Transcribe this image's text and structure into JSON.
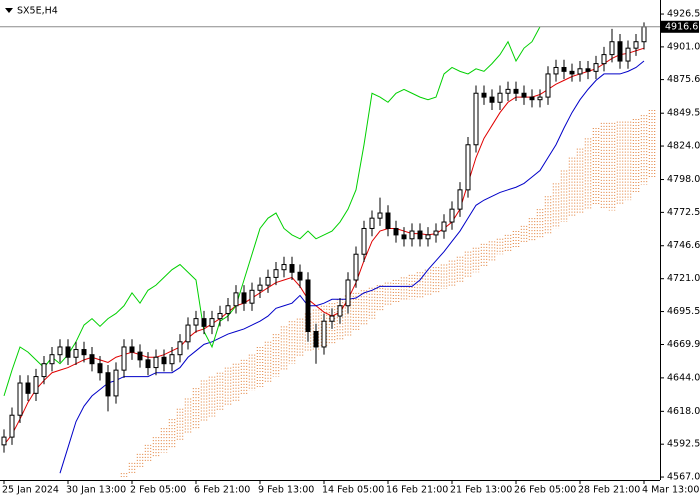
{
  "chart_data": {
    "type": "candlestick",
    "title": "SX5E,H4",
    "ylim": [
      4564.7,
      4937.4
    ],
    "yticks": [
      {
        "value": 4567,
        "label": "4567.0"
      },
      4592.5,
      {
        "value": 4618,
        "label": "4618.0"
      },
      {
        "value": 4644,
        "label": "4644.0"
      },
      4669.9,
      4695.5,
      {
        "value": 4721,
        "label": "4721.0"
      },
      4746.6,
      4772.5,
      {
        "value": 4798,
        "label": "4798.0"
      },
      {
        "value": 4824,
        "label": "4824.0"
      },
      4849.5,
      4875.6,
      {
        "value": 4901,
        "label": "4901.0"
      },
      4926.5
    ],
    "last_price": 4916.6,
    "candle_color": "#000000",
    "categories": [
      "25 Jan 2024",
      null,
      null,
      null,
      null,
      null,
      null,
      null,
      "30 Jan 13:00",
      null,
      null,
      null,
      null,
      null,
      null,
      null,
      "2 Feb 05:00",
      null,
      null,
      null,
      null,
      null,
      null,
      null,
      "6 Feb 21:00",
      null,
      null,
      null,
      null,
      null,
      null,
      null,
      "9 Feb 13:00",
      null,
      null,
      null,
      null,
      null,
      null,
      null,
      "14 Feb 05:00",
      null,
      null,
      null,
      null,
      null,
      null,
      null,
      "16 Feb 21:00",
      null,
      null,
      null,
      null,
      null,
      null,
      null,
      "21 Feb 13:00",
      null,
      null,
      null,
      null,
      null,
      null,
      null,
      "26 Feb 05:00",
      null,
      null,
      null,
      null,
      null,
      null,
      null,
      "28 Feb 21:00",
      null,
      null,
      null,
      null,
      null,
      null,
      null,
      "4 Mar 13:00",
      null
    ],
    "open": [
      4592,
      4598,
      4615,
      4640,
      4632,
      4645,
      4655,
      4662,
      4668,
      4660,
      4666,
      4662,
      4655,
      4648,
      4630,
      4650,
      4668,
      4664,
      4658,
      4652,
      4660,
      4655,
      4662,
      4672,
      4685,
      4690,
      4684,
      4690,
      4694,
      4700,
      4710,
      4702,
      4712,
      4716,
      4722,
      4728,
      4732,
      4726,
      4720,
      4680,
      4668,
      4688,
      4692,
      4700,
      4720,
      4740,
      4760,
      4768,
      4772,
      4760,
      4755,
      4752,
      4758,
      4752,
      4755,
      4758,
      4765,
      4775,
      4790,
      4825,
      4865,
      4862,
      4858,
      4865,
      4868,
      4865,
      4862,
      4860,
      4862,
      4880,
      4885,
      4882,
      4880,
      4884,
      4882,
      4888,
      4895,
      4905,
      4890,
      4900,
      4905,
      null
    ],
    "high": [
      4604,
      4621,
      4646,
      4646,
      4651,
      4661,
      4668,
      4674,
      4674,
      4672,
      4672,
      4668,
      4661,
      4654,
      4656,
      4674,
      4674,
      4670,
      4664,
      4666,
      4666,
      4668,
      4678,
      4691,
      4696,
      4696,
      4696,
      4700,
      4706,
      4716,
      4716,
      4718,
      4722,
      4728,
      4734,
      4738,
      4738,
      4732,
      4726,
      4686,
      4694,
      4698,
      4706,
      4726,
      4746,
      4766,
      4774,
      4784,
      4778,
      4766,
      4761,
      4764,
      4764,
      4761,
      4764,
      4771,
      4781,
      4796,
      4831,
      4871,
      4871,
      4868,
      4871,
      4874,
      4874,
      4871,
      4868,
      4868,
      4886,
      4891,
      4891,
      4888,
      4890,
      4890,
      4894,
      4901,
      4915,
      4911,
      4906,
      4911,
      4920,
      null
    ],
    "low": [
      4586,
      4592,
      4609,
      4626,
      4626,
      4639,
      4649,
      4656,
      4654,
      4654,
      4656,
      4649,
      4642,
      4618,
      4624,
      4644,
      4658,
      4652,
      4646,
      4646,
      4649,
      4649,
      4656,
      4666,
      4679,
      4678,
      4678,
      4684,
      4688,
      4694,
      4696,
      4696,
      4706,
      4710,
      4716,
      4722,
      4720,
      4714,
      4672,
      4655,
      4662,
      4682,
      4686,
      4694,
      4714,
      4734,
      4754,
      4762,
      4754,
      4749,
      4746,
      4746,
      4746,
      4746,
      4749,
      4752,
      4759,
      4769,
      4784,
      4819,
      4856,
      4852,
      4852,
      4859,
      4859,
      4856,
      4854,
      4854,
      4856,
      4874,
      4876,
      4874,
      4874,
      4876,
      4876,
      4882,
      4889,
      4884,
      4884,
      4894,
      4899,
      null
    ],
    "close": [
      4598,
      4615,
      4640,
      4632,
      4645,
      4655,
      4662,
      4668,
      4660,
      4666,
      4662,
      4655,
      4648,
      4630,
      4650,
      4668,
      4664,
      4658,
      4652,
      4660,
      4655,
      4662,
      4672,
      4685,
      4690,
      4684,
      4690,
      4694,
      4700,
      4710,
      4702,
      4712,
      4716,
      4722,
      4728,
      4732,
      4726,
      4720,
      4680,
      4668,
      4688,
      4692,
      4700,
      4720,
      4740,
      4760,
      4768,
      4772,
      4760,
      4755,
      4752,
      4758,
      4752,
      4755,
      4758,
      4765,
      4775,
      4790,
      4825,
      4865,
      4862,
      4858,
      4865,
      4868,
      4865,
      4862,
      4860,
      4862,
      4880,
      4885,
      4882,
      4880,
      4884,
      4882,
      4888,
      4895,
      4905,
      4890,
      4900,
      4905,
      4916.6,
      null
    ],
    "series": [
      {
        "color": "#e00000",
        "values": [
          4592,
          4600,
          4612,
          4625,
          4635,
          4642,
          4648,
          4650,
          4652,
          4655,
          4658,
          4660,
          4658,
          4656,
          4660,
          4662,
          4664,
          4662,
          4660,
          4660,
          4662,
          4665,
          4668,
          4675,
          4680,
          4682,
          4686,
          4690,
          4695,
          4700,
          4702,
          4706,
          4710,
          4714,
          4718,
          4720,
          4722,
          4715,
          4705,
          4700,
          4695,
          4692,
          4695,
          4705,
          4718,
          4735,
          4750,
          4758,
          4760,
          4760,
          4758,
          4756,
          4756,
          4755,
          4756,
          4760,
          4765,
          4775,
          4795,
          4815,
          4830,
          4840,
          4850,
          4858,
          4862,
          4862,
          4862,
          4864,
          4868,
          4872,
          4875,
          4878,
          4880,
          4882,
          4884,
          4888,
          4892,
          4895,
          4896,
          4898,
          4900,
          null
        ]
      },
      {
        "color": "#0000c8",
        "values": [
          null,
          null,
          null,
          null,
          null,
          null,
          null,
          4570,
          4590,
          4610,
          4622,
          4630,
          4635,
          4640,
          4642,
          4645,
          4645,
          4645,
          4645,
          4648,
          4648,
          4648,
          4652,
          4660,
          4665,
          4670,
          4672,
          4675,
          4678,
          4680,
          4682,
          4685,
          4688,
          4692,
          4698,
          4700,
          4702,
          4708,
          4700,
          4700,
          4702,
          4705,
          4705,
          4705,
          4706,
          4710,
          4712,
          4715,
          4715,
          4715,
          4715,
          4715,
          4720,
          4728,
          4735,
          4742,
          4750,
          4758,
          4768,
          4778,
          4782,
          4785,
          4788,
          4790,
          4792,
          4795,
          4800,
          4805,
          4815,
          4825,
          4838,
          4850,
          4860,
          4868,
          4875,
          4880,
          4880,
          4880,
          4882,
          4885,
          4890,
          null
        ]
      },
      {
        "color": "#00d000",
        "values": [
          4630,
          4650,
          4668,
          4664,
          4658,
          4652,
          4660,
          4655,
          4662,
          4672,
          4685,
          4690,
          4684,
          4690,
          4694,
          4700,
          4710,
          4702,
          4712,
          4716,
          4722,
          4728,
          4732,
          4726,
          4720,
          4680,
          4668,
          4688,
          4692,
          4700,
          4720,
          4740,
          4760,
          4768,
          4772,
          4760,
          4755,
          4752,
          4758,
          4752,
          4755,
          4758,
          4765,
          4775,
          4790,
          4825,
          4865,
          4862,
          4858,
          4865,
          4868,
          4865,
          4862,
          4860,
          4862,
          4880,
          4885,
          4882,
          4880,
          4884,
          4882,
          4888,
          4895,
          4905,
          4890,
          4900,
          4905,
          4916.6,
          null,
          null,
          null,
          null,
          null,
          null,
          null,
          null,
          null,
          null,
          null,
          null,
          null,
          null
        ]
      }
    ],
    "cloud": {
      "color": "#e07a30",
      "span_a": [
        null,
        null,
        null,
        null,
        null,
        null,
        null,
        null,
        null,
        null,
        null,
        null,
        null,
        null,
        null,
        4570,
        4578,
        4585,
        4592,
        4598,
        4605,
        4612,
        4620,
        4628,
        4636,
        4642,
        4645,
        4648,
        4652,
        4655,
        4658,
        4662,
        4668,
        4672,
        4678,
        4684,
        4688,
        4690,
        4694,
        4697,
        4700,
        4702,
        4705,
        4708,
        4710,
        4712,
        4714,
        4716,
        4718,
        4720,
        4722,
        4724,
        4726,
        4728,
        4730,
        4732,
        4735,
        4738,
        4742,
        4745,
        4748,
        4750,
        4752,
        4755,
        4758,
        4762,
        4768,
        4775,
        4785,
        4795,
        4805,
        4815,
        4822,
        4830,
        4838,
        4842,
        4842,
        4843,
        4843,
        4845,
        4848,
        4852
      ],
      "span_b": [
        null,
        null,
        null,
        null,
        null,
        null,
        null,
        null,
        null,
        null,
        null,
        null,
        null,
        null,
        null,
        4567,
        4570,
        4574,
        4578,
        4582,
        4586,
        4590,
        4595,
        4600,
        4605,
        4610,
        4614,
        4618,
        4622,
        4626,
        4630,
        4634,
        4637,
        4640,
        4645,
        4650,
        4655,
        4660,
        4664,
        4666,
        4668,
        4670,
        4673,
        4676,
        4680,
        4685,
        4690,
        4695,
        4700,
        4702,
        4704,
        4705,
        4706,
        4708,
        4710,
        4713,
        4715,
        4718,
        4722,
        4726,
        4730,
        4735,
        4740,
        4742,
        4745,
        4748,
        4750,
        4752,
        4755,
        4760,
        4765,
        4770,
        4772,
        4775,
        4778,
        4776,
        4774,
        4778,
        4782,
        4788,
        4794,
        4800
      ]
    }
  }
}
